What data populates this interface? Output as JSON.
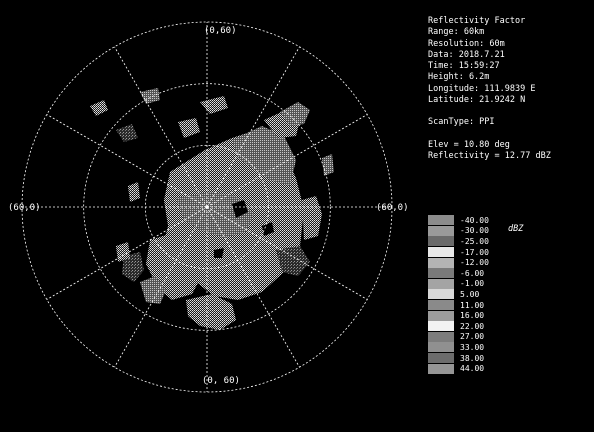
{
  "axes": {
    "top": "(0,60)",
    "left": "(60,0)",
    "right": "(60,0)",
    "bottom": "(0, 60)"
  },
  "info": {
    "product": "Reflectivity Factor",
    "range": "Range: 60km",
    "resolution": "Resolution: 60m",
    "date": "Data: 2018.7.21",
    "time": "Time: 15:59:27",
    "height": "Height: 6.2m",
    "longitude": "Longitude: 111.9839 E",
    "latitude": "Latitude: 21.9242 N",
    "scan_type": "ScanType: PPI",
    "elevation": "Elev =  10.80 deg",
    "reflectivity": "Reflectivity =  12.77 dBZ"
  },
  "legend": {
    "unit": "dBZ",
    "items": [
      {
        "label": "-40.00",
        "color": "#8c8c8c"
      },
      {
        "label": "-30.00",
        "color": "#9a9a9a"
      },
      {
        "label": "-25.00",
        "color": "#6a6a6a"
      },
      {
        "label": "-17.00",
        "color": "#e8e8e8"
      },
      {
        "label": "-12.00",
        "color": "#b4b4b4"
      },
      {
        "label": "-6.00",
        "color": "#7a7a7a"
      },
      {
        "label": "-1.00",
        "color": "#a4a4a4"
      },
      {
        "label": "5.00",
        "color": "#d8d8d8"
      },
      {
        "label": "11.00",
        "color": "#8a8a8a"
      },
      {
        "label": "16.00",
        "color": "#9c9c9c"
      },
      {
        "label": "22.00",
        "color": "#f2f2f2"
      },
      {
        "label": "27.00",
        "color": "#7c7c7c"
      },
      {
        "label": "33.00",
        "color": "#909090"
      },
      {
        "label": "38.00",
        "color": "#6c6c6c"
      },
      {
        "label": "44.00",
        "color": "#959595"
      }
    ]
  },
  "colors": {
    "background": "#000000",
    "grid": "#ffffff",
    "echo_light": "#e6e6e6",
    "echo_mid": "#a8a8a8",
    "echo_dark": "#6e6e6e"
  }
}
